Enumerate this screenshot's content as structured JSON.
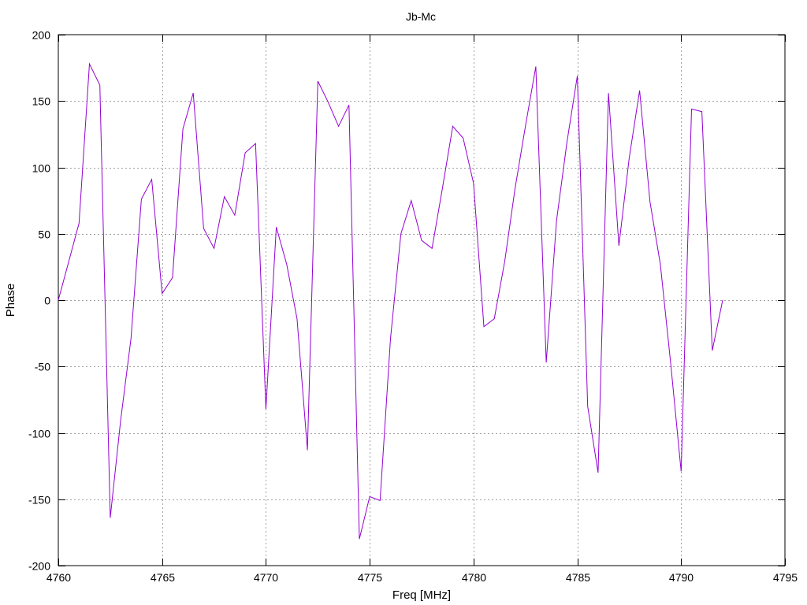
{
  "chart_data": {
    "type": "line",
    "title": "Jb-Mc",
    "xlabel": "Freq [MHz]",
    "ylabel": "Phase",
    "xlim": [
      4760,
      4795
    ],
    "ylim": [
      -200,
      200
    ],
    "xticks": [
      4760,
      4765,
      4770,
      4775,
      4780,
      4785,
      4790,
      4795
    ],
    "yticks": [
      -200,
      -150,
      -100,
      -50,
      0,
      50,
      100,
      150,
      200
    ],
    "grid": true,
    "line_color": "#9400d3",
    "series": [
      {
        "x": [
          4760,
          4760.5,
          4761,
          4761.5,
          4762,
          4762.5,
          4763,
          4763.5,
          4764,
          4764.5,
          4765,
          4765.5,
          4766,
          4766.5,
          4767,
          4767.5,
          4768,
          4768.5,
          4769,
          4769.5,
          4770,
          4770.5,
          4771,
          4771.5,
          4772,
          4772.5,
          4773,
          4773.5,
          4774,
          4774.5,
          4775,
          4775.5,
          4776,
          4776.5,
          4777,
          4777.5,
          4778,
          4778.5,
          4779,
          4779.5,
          4780,
          4780.5,
          4781,
          4781.5,
          4782,
          4782.5,
          4783,
          4783.5,
          4784,
          4784.5,
          4785,
          4785.5,
          4786,
          4786.5,
          4787,
          4787.5,
          4788,
          4788.5,
          4789,
          4789.5,
          4790,
          4790.5,
          4791,
          4791.5,
          4792
        ],
        "y": [
          0,
          29,
          58,
          178,
          162,
          -164,
          -91,
          -29,
          76,
          91,
          5,
          17,
          129,
          156,
          54,
          39,
          78,
          64,
          111,
          118,
          -82,
          55,
          27,
          -14,
          -113,
          165,
          149,
          131,
          147,
          -180,
          -148,
          -151,
          -29,
          50,
          75,
          45,
          39,
          84,
          131,
          122,
          88,
          -20,
          -14,
          29,
          84,
          131,
          176,
          -47,
          60,
          119,
          169,
          -80,
          -130,
          156,
          41,
          107,
          158,
          74,
          27,
          -48,
          -129,
          144,
          142,
          -38,
          0
        ]
      }
    ]
  }
}
